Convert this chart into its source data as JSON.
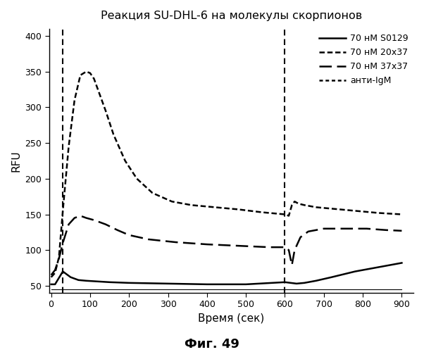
{
  "title": "Реакция SU-DHL-6 на молекулы скорпионов",
  "xlabel": "Время (сек)",
  "ylabel": "RFU",
  "caption": "Фиг. 49",
  "xlim": [
    -5,
    930
  ],
  "ylim": [
    40,
    410
  ],
  "xticks": [
    0,
    100,
    200,
    300,
    400,
    500,
    600,
    700,
    800,
    900
  ],
  "yticks": [
    50,
    100,
    150,
    200,
    250,
    300,
    350,
    400
  ],
  "vline_x1": 30,
  "vline_x2": 600,
  "legend_labels": [
    "70 нМ S0129",
    "70 нМ 20x37",
    "70 нМ 37x37",
    "анти-IgM"
  ],
  "line_color": "#000000",
  "s0129_x": [
    0,
    10,
    30,
    50,
    70,
    90,
    120,
    150,
    200,
    300,
    400,
    500,
    600,
    615,
    630,
    650,
    680,
    720,
    780,
    840,
    900
  ],
  "s0129_y": [
    52,
    52,
    70,
    62,
    58,
    57,
    56,
    55,
    54,
    53,
    52,
    52,
    55,
    54,
    53,
    54,
    57,
    62,
    70,
    76,
    82
  ],
  "x20x37_x": [
    0,
    10,
    20,
    30,
    45,
    60,
    75,
    90,
    100,
    110,
    120,
    140,
    160,
    190,
    220,
    260,
    310,
    360,
    420,
    480,
    540,
    600,
    610,
    618,
    625,
    635,
    650,
    680,
    720,
    780,
    840,
    900
  ],
  "x20x37_y": [
    62,
    68,
    90,
    155,
    245,
    310,
    345,
    350,
    348,
    340,
    325,
    295,
    262,
    225,
    200,
    180,
    168,
    163,
    160,
    157,
    153,
    150,
    148,
    163,
    168,
    165,
    163,
    160,
    158,
    155,
    152,
    150
  ],
  "x37x37_x": [
    0,
    10,
    20,
    30,
    45,
    60,
    75,
    90,
    110,
    140,
    170,
    200,
    250,
    320,
    400,
    480,
    560,
    600,
    610,
    618,
    625,
    640,
    660,
    700,
    750,
    810,
    860,
    900
  ],
  "x37x37_y": [
    65,
    72,
    88,
    110,
    136,
    145,
    148,
    145,
    142,
    136,
    128,
    121,
    115,
    111,
    108,
    106,
    104,
    104,
    100,
    79,
    100,
    118,
    126,
    130,
    130,
    130,
    128,
    127
  ],
  "baseline_x": [
    0,
    900
  ],
  "baseline_y": [
    45,
    45
  ]
}
